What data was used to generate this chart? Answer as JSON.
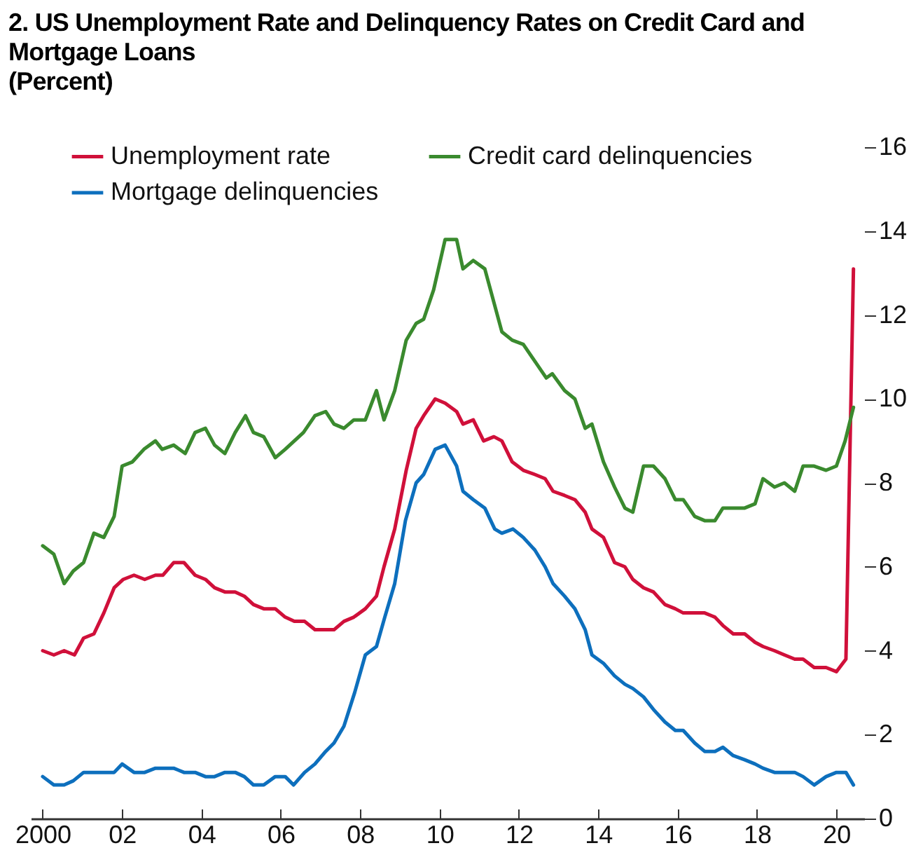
{
  "chart_data": {
    "type": "line",
    "title": "2. US Unemployment Rate and Delinquency Rates on Credit Card and Mortgage Loans",
    "subtitle": "(Percent)",
    "xlim": [
      1999.7,
      2020.7
    ],
    "xticks": [
      {
        "value": 2000,
        "label": "2000"
      },
      {
        "value": 2002,
        "label": "02"
      },
      {
        "value": 2004,
        "label": "04"
      },
      {
        "value": 2006,
        "label": "06"
      },
      {
        "value": 2008,
        "label": "08"
      },
      {
        "value": 2010,
        "label": "10"
      },
      {
        "value": 2012,
        "label": "12"
      },
      {
        "value": 2014,
        "label": "14"
      },
      {
        "value": 2016,
        "label": "16"
      },
      {
        "value": 2018,
        "label": "18"
      },
      {
        "value": 2020,
        "label": "20"
      }
    ],
    "ylim": [
      0,
      16
    ],
    "yticks": [
      0,
      2,
      4,
      6,
      8,
      10,
      12,
      14,
      16
    ],
    "legend": "top left",
    "grid": false,
    "marker": "none",
    "line_style": "solid",
    "series": [
      {
        "name": "Unemployment rate",
        "color": "#d0103a",
        "x": [
          2000,
          2000.28,
          2000.54,
          2000.8,
          2001.03,
          2001.29,
          2001.54,
          2001.8,
          2002.03,
          2002.3,
          2002.57,
          2002.84,
          2003.03,
          2003.3,
          2003.56,
          2003.84,
          2004.1,
          2004.33,
          2004.59,
          2004.85,
          2005.08,
          2005.31,
          2005.57,
          2005.86,
          2006.11,
          2006.34,
          2006.6,
          2006.86,
          2007.13,
          2007.34,
          2007.59,
          2007.84,
          2008.13,
          2008.41,
          2008.6,
          2008.87,
          2009.16,
          2009.41,
          2009.6,
          2009.89,
          2010.14,
          2010.43,
          2010.59,
          2010.85,
          2011.11,
          2011.37,
          2011.57,
          2011.83,
          2012.11,
          2012.4,
          2012.66,
          2012.86,
          2013.15,
          2013.41,
          2013.67,
          2013.84,
          2014.13,
          2014.41,
          2014.67,
          2014.87,
          2015.14,
          2015.39,
          2015.68,
          2015.94,
          2016.14,
          2016.43,
          2016.68,
          2016.94,
          2017.14,
          2017.4,
          2017.69,
          2017.95,
          2018.15,
          2018.44,
          2018.69,
          2018.95,
          2019.16,
          2019.44,
          2019.74,
          2020,
          2020.24,
          2020.43
        ],
        "values": [
          4.0,
          3.9,
          4.0,
          3.9,
          4.3,
          4.4,
          4.9,
          5.5,
          5.7,
          5.8,
          5.7,
          5.8,
          5.8,
          6.1,
          6.1,
          5.8,
          5.7,
          5.5,
          5.4,
          5.4,
          5.3,
          5.1,
          5.0,
          5.0,
          4.8,
          4.7,
          4.7,
          4.5,
          4.5,
          4.5,
          4.7,
          4.8,
          5.0,
          5.3,
          6.0,
          6.9,
          8.3,
          9.3,
          9.6,
          10.0,
          9.9,
          9.7,
          9.4,
          9.5,
          9.0,
          9.1,
          9.0,
          8.5,
          8.3,
          8.2,
          8.1,
          7.8,
          7.7,
          7.6,
          7.3,
          6.9,
          6.7,
          6.1,
          6.0,
          5.7,
          5.5,
          5.4,
          5.1,
          5.0,
          4.9,
          4.9,
          4.9,
          4.8,
          4.6,
          4.4,
          4.4,
          4.2,
          4.1,
          4.0,
          3.9,
          3.8,
          3.8,
          3.6,
          3.6,
          3.5,
          3.8,
          13.1
        ]
      },
      {
        "name": "Credit card delinquencies",
        "color": "#3a8a2e",
        "x": [
          2000,
          2000.28,
          2000.54,
          2000.77,
          2001.03,
          2001.29,
          2001.54,
          2001.8,
          2002,
          2002.26,
          2002.55,
          2002.84,
          2003.01,
          2003.3,
          2003.59,
          2003.84,
          2004.1,
          2004.33,
          2004.59,
          2004.85,
          2005.11,
          2005.31,
          2005.57,
          2005.86,
          2006.11,
          2006.34,
          2006.57,
          2006.86,
          2007.13,
          2007.34,
          2007.59,
          2007.84,
          2008.13,
          2008.41,
          2008.6,
          2008.87,
          2009.16,
          2009.41,
          2009.6,
          2009.85,
          2010.14,
          2010.43,
          2010.59,
          2010.85,
          2011.14,
          2011.57,
          2011.83,
          2012.11,
          2012.4,
          2012.69,
          2012.84,
          2013.15,
          2013.41,
          2013.67,
          2013.84,
          2014.13,
          2014.41,
          2014.67,
          2014.87,
          2015.14,
          2015.39,
          2015.68,
          2015.94,
          2016.14,
          2016.43,
          2016.68,
          2016.94,
          2017.14,
          2017.4,
          2017.69,
          2017.95,
          2018.15,
          2018.44,
          2018.69,
          2018.95,
          2019.16,
          2019.44,
          2019.74,
          2020,
          2020.22,
          2020.43
        ],
        "values": [
          6.5,
          6.3,
          5.6,
          5.9,
          6.1,
          6.8,
          6.7,
          7.2,
          8.4,
          8.5,
          8.8,
          9.0,
          8.8,
          8.9,
          8.7,
          9.2,
          9.3,
          8.9,
          8.7,
          9.2,
          9.6,
          9.2,
          9.1,
          8.6,
          8.8,
          9.0,
          9.2,
          9.6,
          9.7,
          9.4,
          9.3,
          9.5,
          9.5,
          10.2,
          9.5,
          10.2,
          11.4,
          11.8,
          11.9,
          12.6,
          13.8,
          13.8,
          13.1,
          13.3,
          13.1,
          11.6,
          11.4,
          11.3,
          10.9,
          10.5,
          10.6,
          10.2,
          10.0,
          9.3,
          9.4,
          8.5,
          7.9,
          7.4,
          7.3,
          8.4,
          8.4,
          8.1,
          7.6,
          7.6,
          7.2,
          7.1,
          7.1,
          7.4,
          7.4,
          7.4,
          7.5,
          8.1,
          7.9,
          8.0,
          7.8,
          8.4,
          8.4,
          8.3,
          8.4,
          9.0,
          9.8
        ]
      },
      {
        "name": "Mortgage delinquencies",
        "color": "#0d6fbd",
        "x": [
          2000,
          2000.28,
          2000.54,
          2000.77,
          2001.03,
          2001.31,
          2001.57,
          2001.8,
          2002,
          2002.3,
          2002.57,
          2002.84,
          2003.07,
          2003.3,
          2003.56,
          2003.84,
          2004.1,
          2004.33,
          2004.59,
          2004.85,
          2005.08,
          2005.31,
          2005.57,
          2005.86,
          2006.11,
          2006.32,
          2006.6,
          2006.86,
          2007.13,
          2007.34,
          2007.59,
          2007.86,
          2008.13,
          2008.41,
          2008.62,
          2008.87,
          2009.14,
          2009.41,
          2009.6,
          2009.89,
          2010.14,
          2010.43,
          2010.59,
          2010.85,
          2011.14,
          2011.39,
          2011.57,
          2011.85,
          2012.11,
          2012.4,
          2012.66,
          2012.86,
          2013.15,
          2013.41,
          2013.67,
          2013.84,
          2014.13,
          2014.41,
          2014.67,
          2014.87,
          2015.14,
          2015.39,
          2015.68,
          2015.94,
          2016.14,
          2016.43,
          2016.68,
          2016.94,
          2017.14,
          2017.4,
          2017.69,
          2017.95,
          2018.15,
          2018.44,
          2018.69,
          2018.95,
          2019.16,
          2019.44,
          2019.74,
          2020,
          2020.24,
          2020.43
        ],
        "values": [
          1.0,
          0.8,
          0.8,
          0.9,
          1.1,
          1.1,
          1.1,
          1.1,
          1.3,
          1.1,
          1.1,
          1.2,
          1.2,
          1.2,
          1.1,
          1.1,
          1.0,
          1.0,
          1.1,
          1.1,
          1.0,
          0.8,
          0.8,
          1.0,
          1.0,
          0.8,
          1.1,
          1.3,
          1.6,
          1.8,
          2.2,
          3.0,
          3.9,
          4.1,
          4.8,
          5.6,
          7.1,
          8.0,
          8.2,
          8.8,
          8.9,
          8.4,
          7.8,
          7.6,
          7.4,
          6.9,
          6.8,
          6.9,
          6.7,
          6.4,
          6.0,
          5.6,
          5.3,
          5.0,
          4.5,
          3.9,
          3.7,
          3.4,
          3.2,
          3.1,
          2.9,
          2.6,
          2.3,
          2.1,
          2.1,
          1.8,
          1.6,
          1.6,
          1.7,
          1.5,
          1.4,
          1.3,
          1.2,
          1.1,
          1.1,
          1.1,
          1.0,
          0.8,
          1.0,
          1.1,
          1.1,
          0.8
        ]
      }
    ]
  }
}
